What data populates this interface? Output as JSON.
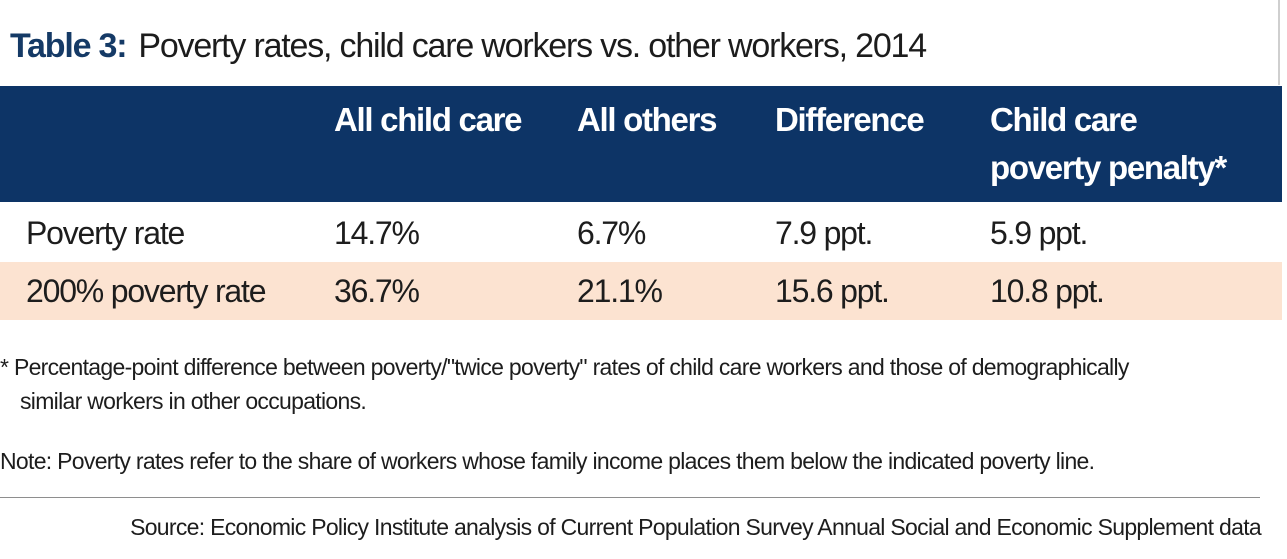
{
  "title": {
    "label": "Table 3:",
    "text": "Poverty rates, child care workers vs. other workers, 2014"
  },
  "table": {
    "headers": [
      "",
      "All child care",
      "All others",
      "Difference",
      "Child care poverty penalty*"
    ],
    "header_lines": {
      "penalty_line1": "Child care",
      "penalty_line2": "poverty penalty*"
    },
    "rows": [
      [
        "Poverty rate",
        "14.7%",
        "6.7%",
        "7.9 ppt.",
        "5.9 ppt."
      ],
      [
        "200% poverty rate",
        "36.7%",
        "21.1%",
        "15.6 ppt.",
        "10.8 ppt."
      ]
    ]
  },
  "footnote": {
    "line1": "* Percentage-point difference between poverty/\"twice poverty\" rates of child care workers and those of demographically",
    "line2": "similar workers in other occupations."
  },
  "note": "Note: Poverty rates refer to the share of workers whose family income places them below the indicated poverty line.",
  "source": "Source: Economic Policy Institute analysis of Current Population Survey Annual Social and Economic Supplement data",
  "colors": {
    "header_bg": "#0d3466",
    "title_label": "#153a66",
    "highlight_row": "#fce3d1"
  }
}
